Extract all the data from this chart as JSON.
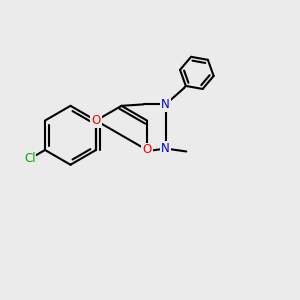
{
  "background_color": "#ebebeb",
  "bond_color": "#000000",
  "bond_width": 1.5,
  "atom_colors": {
    "O": "#ff0000",
    "N": "#0000cc",
    "Cl": "#00aa00",
    "C": "#000000"
  },
  "font_size": 8.5,
  "fig_size": [
    3.0,
    3.0
  ],
  "dpi": 100
}
